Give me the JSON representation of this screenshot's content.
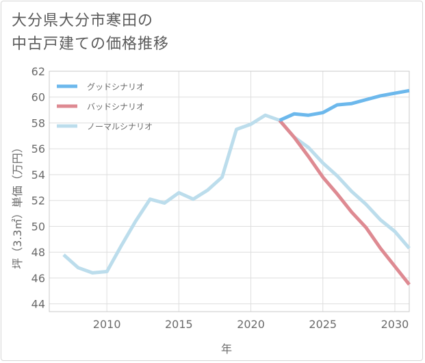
{
  "title_lines": [
    "大分県大分市寒田の",
    "中古戸建ての価格推移"
  ],
  "chart_data": {
    "type": "line",
    "xlabel": "年",
    "ylabel": "坪（3.3㎡）単価（万円）",
    "xlim": [
      2006,
      2031
    ],
    "ylim": [
      43.4,
      62
    ],
    "x_ticks": [
      2010,
      2015,
      2020,
      2025,
      2030
    ],
    "y_ticks": [
      44,
      46,
      48,
      50,
      52,
      54,
      56,
      58,
      60,
      62
    ],
    "grid": true,
    "legend_position": "top-left",
    "series": [
      {
        "name": "グッドシナリオ",
        "color": "#6cb8ec",
        "x": [
          2022,
          2023,
          2024,
          2025,
          2026,
          2027,
          2028,
          2029,
          2030,
          2031
        ],
        "values": [
          58.2,
          58.7,
          58.6,
          58.8,
          59.4,
          59.5,
          59.8,
          60.1,
          60.3,
          60.5
        ]
      },
      {
        "name": "バッドシナリオ",
        "color": "#de8a92",
        "x": [
          2022,
          2023,
          2024,
          2025,
          2026,
          2027,
          2028,
          2029,
          2030,
          2031
        ],
        "values": [
          58.2,
          56.9,
          55.4,
          53.8,
          52.5,
          51.1,
          49.9,
          48.3,
          46.9,
          45.5
        ]
      },
      {
        "name": "ノーマルシナリオ",
        "color": "#bcddec",
        "x": [
          2007,
          2008,
          2009,
          2010,
          2011,
          2012,
          2013,
          2014,
          2015,
          2016,
          2017,
          2018,
          2019,
          2020,
          2021,
          2022,
          2023,
          2024,
          2025,
          2026,
          2027,
          2028,
          2029,
          2030,
          2031
        ],
        "values": [
          47.8,
          46.8,
          46.4,
          46.5,
          48.5,
          50.4,
          52.1,
          51.8,
          52.6,
          52.1,
          52.8,
          53.8,
          57.5,
          57.9,
          58.6,
          58.2,
          56.9,
          56.1,
          54.9,
          53.9,
          52.7,
          51.7,
          50.5,
          49.6,
          48.3
        ]
      }
    ]
  }
}
